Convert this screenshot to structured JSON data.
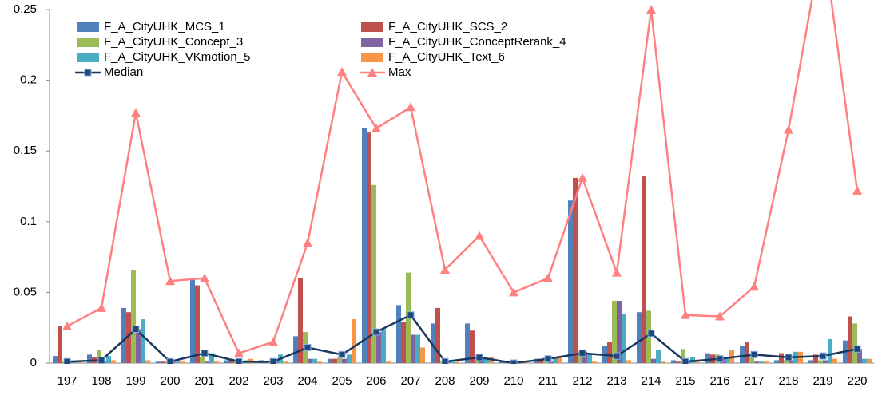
{
  "chart_data": {
    "type": "bar",
    "categories": [
      "197",
      "198",
      "199",
      "200",
      "201",
      "202",
      "203",
      "204",
      "205",
      "206",
      "207",
      "208",
      "209",
      "210",
      "211",
      "212",
      "213",
      "214",
      "215",
      "216",
      "217",
      "218",
      "219",
      "220"
    ],
    "ylim": [
      0,
      0.25
    ],
    "yticks": [
      0,
      0.05,
      0.1,
      0.15,
      0.2,
      0.25
    ],
    "series": [
      {
        "name": "F_A_CityUHK_MCS_1",
        "color": "#4f81bd",
        "type": "bar",
        "values": [
          0.005,
          0.006,
          0.039,
          0.001,
          0.059,
          0.002,
          0.002,
          0.019,
          0.003,
          0.166,
          0.041,
          0.028,
          0.028,
          0.001,
          0.003,
          0.115,
          0.012,
          0.036,
          0.002,
          0.007,
          0.012,
          0.002,
          0.002,
          0.016
        ]
      },
      {
        "name": "F_A_CityUHK_SCS_2",
        "color": "#c0504d",
        "type": "bar",
        "values": [
          0.026,
          0.004,
          0.036,
          0.001,
          0.055,
          0.003,
          0.001,
          0.06,
          0.003,
          0.163,
          0.029,
          0.039,
          0.023,
          0.001,
          0.003,
          0.131,
          0.015,
          0.132,
          0.001,
          0.006,
          0.015,
          0.007,
          0.006,
          0.033
        ]
      },
      {
        "name": "F_A_CityUHK_Concept_3",
        "color": "#9bbb59",
        "type": "bar",
        "values": [
          0.001,
          0.009,
          0.066,
          0.001,
          0.004,
          0.001,
          0.001,
          0.022,
          0.004,
          0.126,
          0.064,
          0.001,
          0.004,
          0.001,
          0.004,
          0.008,
          0.044,
          0.037,
          0.01,
          0.006,
          0.006,
          0.002,
          0.002,
          0.028
        ]
      },
      {
        "name": "F_A_CityUHK_ConceptRerank_4",
        "color": "#8064a2",
        "type": "bar",
        "values": [
          0.001,
          0.001,
          0.024,
          0.001,
          0.001,
          0.001,
          0.001,
          0.003,
          0.003,
          0.022,
          0.02,
          0.001,
          0.004,
          0.001,
          0.001,
          0.008,
          0.044,
          0.003,
          0.001,
          0.004,
          0.001,
          0.002,
          0.002,
          0.01
        ]
      },
      {
        "name": "F_A_CityUHK_VKmotion_5",
        "color": "#4bacc6",
        "type": "bar",
        "values": [
          0.001,
          0.005,
          0.031,
          0.001,
          0.007,
          0.002,
          0.006,
          0.003,
          0.006,
          0.024,
          0.02,
          0.001,
          0.003,
          0.001,
          0.004,
          0.007,
          0.035,
          0.009,
          0.004,
          0.004,
          0.001,
          0.008,
          0.017,
          0.003
        ]
      },
      {
        "name": "F_A_CityUHK_Text_6",
        "color": "#f79646",
        "type": "bar",
        "values": [
          0.001,
          0.002,
          0.002,
          0.001,
          0.001,
          0.003,
          0.001,
          0.001,
          0.031,
          0.001,
          0.011,
          0.001,
          0.004,
          0.001,
          0.005,
          0.001,
          0.002,
          0.001,
          0.001,
          0.009,
          0.001,
          0.008,
          0.003,
          0.003
        ]
      },
      {
        "name": "Median",
        "color": "#17375e",
        "type": "line",
        "marker": "square",
        "values": [
          0.001,
          0.002,
          0.024,
          0.001,
          0.007,
          0.001,
          0.001,
          0.011,
          0.006,
          0.022,
          0.034,
          0.001,
          0.004,
          0,
          0.003,
          0.007,
          0.005,
          0.021,
          0.001,
          0.003,
          0.006,
          0.004,
          0.005,
          0.01
        ]
      },
      {
        "name": "Max",
        "color": "#ff8080",
        "type": "line",
        "marker": "triangle",
        "values": [
          0.026,
          0.039,
          0.177,
          0.058,
          0.06,
          0.007,
          0.015,
          0.085,
          0.206,
          0.166,
          0.181,
          0.066,
          0.09,
          0.05,
          0.06,
          0.131,
          0.064,
          0.25,
          0.034,
          0.033,
          0.054,
          0.165,
          0.3,
          0.122
        ]
      }
    ]
  }
}
